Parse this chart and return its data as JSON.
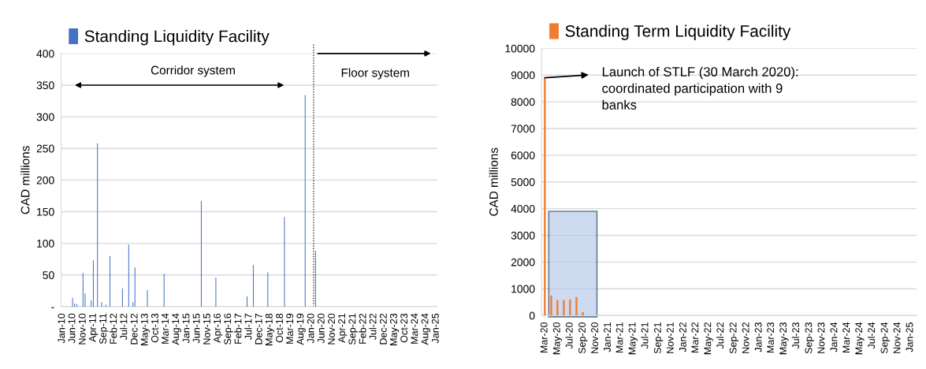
{
  "chart_data": [
    {
      "type": "bar",
      "ylabel": "CAD millions",
      "legend": "top",
      "grid": "y",
      "series": [
        {
          "name": "Standing Liquidity Facility",
          "color": "#4472c4",
          "x": [
            "2010-06",
            "2010-07",
            "2010-08",
            "2010-11",
            "2010-12",
            "2011-03",
            "2011-04",
            "2011-06",
            "2011-08",
            "2011-10",
            "2011-12",
            "2012-06",
            "2012-09",
            "2012-11",
            "2012-12",
            "2013-06",
            "2014-02",
            "2015-08",
            "2016-03",
            "2017-06",
            "2017-09",
            "2018-04",
            "2018-12",
            "2019-10",
            "2020-03"
          ],
          "values": [
            14,
            5,
            4,
            53,
            21,
            10,
            73,
            258,
            7,
            3,
            80,
            29,
            98,
            7,
            62,
            26,
            52,
            167,
            46,
            16,
            66,
            54,
            142,
            334,
            88
          ]
        }
      ],
      "xlim": [
        "2009-12-15",
        "2025-01-15"
      ],
      "xticks": [
        {
          "value": "2010-01",
          "label": "Jan-10"
        },
        {
          "value": "2010-06",
          "label": "Jun-10"
        },
        {
          "value": "2010-11",
          "label": "Nov-10"
        },
        {
          "value": "2011-04",
          "label": "Apr-11"
        },
        {
          "value": "2011-09",
          "label": "Sep-11"
        },
        {
          "value": "2012-02",
          "label": "Feb-12"
        },
        {
          "value": "2012-07",
          "label": "Jul-12"
        },
        {
          "value": "2012-12",
          "label": "Dec-12"
        },
        {
          "value": "2013-05",
          "label": "May-13"
        },
        {
          "value": "2013-10",
          "label": "Oct-13"
        },
        {
          "value": "2014-03",
          "label": "Mar-14"
        },
        {
          "value": "2014-08",
          "label": "Aug-14"
        },
        {
          "value": "2015-01",
          "label": "Jan-15"
        },
        {
          "value": "2015-06",
          "label": "Jun-15"
        },
        {
          "value": "2015-11",
          "label": "Nov-15"
        },
        {
          "value": "2016-04",
          "label": "Apr-16"
        },
        {
          "value": "2016-09",
          "label": "Sep-16"
        },
        {
          "value": "2017-02",
          "label": "Feb-17"
        },
        {
          "value": "2017-07",
          "label": "Jul-17"
        },
        {
          "value": "2017-12",
          "label": "Dec-17"
        },
        {
          "value": "2018-05",
          "label": "May-18"
        },
        {
          "value": "2018-10",
          "label": "Oct-18"
        },
        {
          "value": "2019-03",
          "label": "Mar-19"
        },
        {
          "value": "2019-08",
          "label": "Aug-19"
        },
        {
          "value": "2020-01",
          "label": "Jan-20"
        },
        {
          "value": "2020-06",
          "label": "Jun-20"
        },
        {
          "value": "2020-11",
          "label": "Nov-20"
        },
        {
          "value": "2021-04",
          "label": "Apr-21"
        },
        {
          "value": "2021-09",
          "label": "Sep-21"
        },
        {
          "value": "2022-02",
          "label": "Feb-22"
        },
        {
          "value": "2022-07",
          "label": "Jul-22"
        },
        {
          "value": "2022-12",
          "label": "Dec-22"
        },
        {
          "value": "2023-05",
          "label": "May-23"
        },
        {
          "value": "2023-10",
          "label": "Oct-23"
        },
        {
          "value": "2024-03",
          "label": "Mar-24"
        },
        {
          "value": "2024-08",
          "label": "Aug-24"
        },
        {
          "value": "2025-01",
          "label": "Jan-25"
        }
      ],
      "ylim": [
        0,
        400
      ],
      "yticks": [
        {
          "value": 0,
          "label": "-"
        },
        50,
        100,
        150,
        200,
        250,
        300,
        350,
        400
      ],
      "ref_lines": [
        {
          "axis": "x",
          "value": "2020-02",
          "color": "#000000",
          "line_style": "dotted"
        }
      ],
      "annotations": [
        "Corridor system",
        "Floor system"
      ]
    },
    {
      "type": "bar",
      "ylabel": "CAD millions",
      "legend": "top",
      "grid": "y",
      "series": [
        {
          "name": "Standing Term Liquidity Facility",
          "color": "#ed7d31",
          "x": [
            "2020-03",
            "2020-04",
            "2020-05",
            "2020-06",
            "2020-07",
            "2020-08",
            "2020-09"
          ],
          "values": [
            8900,
            750,
            570,
            570,
            600,
            690,
            130
          ]
        }
      ],
      "xlim": [
        "2020-02-15",
        "2025-02-01"
      ],
      "xticks": [
        {
          "value": "2020-03",
          "label": "Mar-20"
        },
        {
          "value": "2020-05",
          "label": "May-20"
        },
        {
          "value": "2020-07",
          "label": "Jul-20"
        },
        {
          "value": "2020-09",
          "label": "Sep-20"
        },
        {
          "value": "2020-11",
          "label": "Nov-20"
        },
        {
          "value": "2021-01",
          "label": "Jan-21"
        },
        {
          "value": "2021-03",
          "label": "Mar-21"
        },
        {
          "value": "2021-05",
          "label": "May-21"
        },
        {
          "value": "2021-07",
          "label": "Jul-21"
        },
        {
          "value": "2021-09",
          "label": "Sep-21"
        },
        {
          "value": "2021-11",
          "label": "Nov-21"
        },
        {
          "value": "2022-01",
          "label": "Jan-22"
        },
        {
          "value": "2022-03",
          "label": "Mar-22"
        },
        {
          "value": "2022-05",
          "label": "May-22"
        },
        {
          "value": "2022-07",
          "label": "Jul-22"
        },
        {
          "value": "2022-09",
          "label": "Sep-22"
        },
        {
          "value": "2022-11",
          "label": "Nov-22"
        },
        {
          "value": "2023-01",
          "label": "Jan-23"
        },
        {
          "value": "2023-03",
          "label": "Mar-23"
        },
        {
          "value": "2023-05",
          "label": "May-23"
        },
        {
          "value": "2023-07",
          "label": "Jul-23"
        },
        {
          "value": "2023-09",
          "label": "Sep-23"
        },
        {
          "value": "2023-11",
          "label": "Nov-23"
        },
        {
          "value": "2024-01",
          "label": "Jan-24"
        },
        {
          "value": "2024-03",
          "label": "Mar-24"
        },
        {
          "value": "2024-05",
          "label": "May-24"
        },
        {
          "value": "2024-07",
          "label": "Jul-24"
        },
        {
          "value": "2024-09",
          "label": "Sep-24"
        },
        {
          "value": "2024-11",
          "label": "Nov-24"
        },
        {
          "value": "2025-01",
          "label": "Jan-25"
        }
      ],
      "bands": [
        {
          "axis": "x",
          "from": "2020-03-20",
          "to": "2020-11-08",
          "color": "#b4c7e7"
        }
      ],
      "ylim": [
        0,
        10000
      ],
      "yticks": [
        0,
        1000,
        2000,
        3000,
        4000,
        5000,
        6000,
        7000,
        8000,
        9000,
        10000
      ],
      "annotations": [
        {
          "text": "Launch of STLF (30 March 2020):\ncoordinated participation with 9\nbanks",
          "x": "2020-03",
          "y": 8900
        }
      ]
    }
  ]
}
